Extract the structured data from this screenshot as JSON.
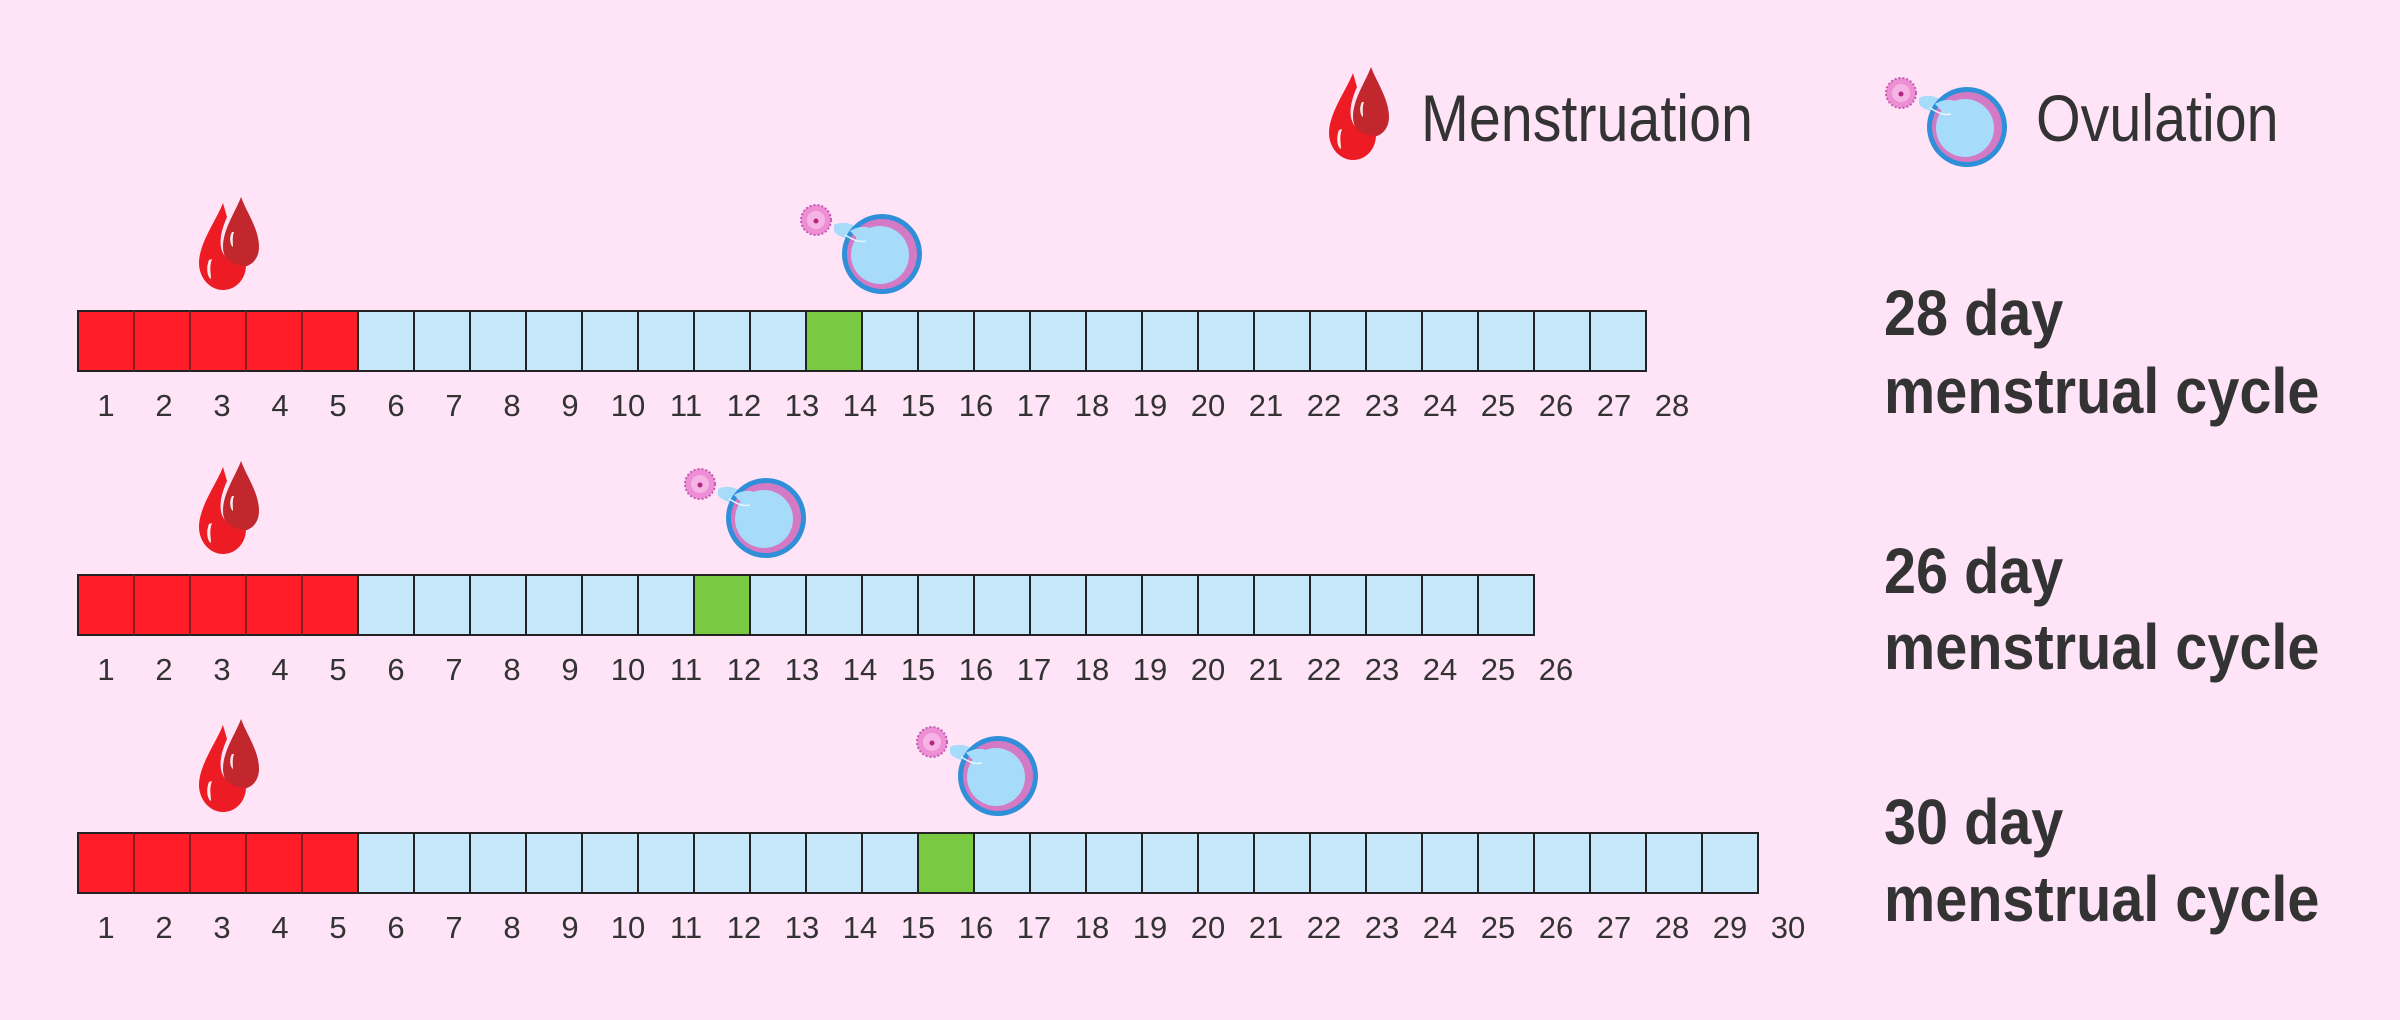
{
  "legend": {
    "items": [
      {
        "icon": "blood-drops-icon",
        "label": "Menstruation"
      },
      {
        "icon": "ovulation-follicle-icon",
        "label": "Ovulation"
      }
    ]
  },
  "colors": {
    "background": "#FFE4F8",
    "menstruation_cell": "#FF1E28",
    "regular_cell": "#C7E8FA",
    "ovulation_cell": "#7AC943",
    "text": "#333333",
    "drop_front": "#ED1C24",
    "drop_back": "#C1272D"
  },
  "rows": [
    {
      "title_line1": "28 day",
      "title_line2": "menstrual cycle"
    },
    {
      "title_line1": "26 day",
      "title_line2": "menstrual cycle"
    },
    {
      "title_line1": "30 day",
      "title_line2": "menstrual cycle"
    }
  ],
  "chart_data": {
    "type": "table",
    "title": "",
    "legend": [
      "Menstruation",
      "Ovulation"
    ],
    "series": [
      {
        "name": "28 day menstrual cycle",
        "cycle_length": 28,
        "menstruation_days": [
          1,
          2,
          3,
          4,
          5
        ],
        "ovulation_day": 14,
        "day_labels": [
          "1",
          "2",
          "3",
          "4",
          "5",
          "6",
          "7",
          "8",
          "9",
          "10",
          "11",
          "12",
          "13",
          "14",
          "15",
          "16",
          "17",
          "18",
          "19",
          "20",
          "21",
          "22",
          "23",
          "24",
          "25",
          "26",
          "27",
          "28"
        ]
      },
      {
        "name": "26 day menstrual cycle",
        "cycle_length": 26,
        "menstruation_days": [
          1,
          2,
          3,
          4,
          5
        ],
        "ovulation_day": 12,
        "day_labels": [
          "1",
          "2",
          "3",
          "4",
          "5",
          "6",
          "7",
          "8",
          "9",
          "10",
          "11",
          "12",
          "13",
          "14",
          "15",
          "16",
          "17",
          "18",
          "19",
          "20",
          "21",
          "22",
          "23",
          "24",
          "25",
          "26"
        ]
      },
      {
        "name": "30 day menstrual cycle",
        "cycle_length": 30,
        "menstruation_days": [
          1,
          2,
          3,
          4,
          5
        ],
        "ovulation_day": 16,
        "day_labels": [
          "1",
          "2",
          "3",
          "4",
          "5",
          "6",
          "7",
          "8",
          "9",
          "10",
          "11",
          "12",
          "13",
          "14",
          "15",
          "16",
          "17",
          "18",
          "19",
          "20",
          "21",
          "22",
          "23",
          "24",
          "25",
          "26",
          "27",
          "28",
          "29",
          "30"
        ]
      }
    ]
  }
}
